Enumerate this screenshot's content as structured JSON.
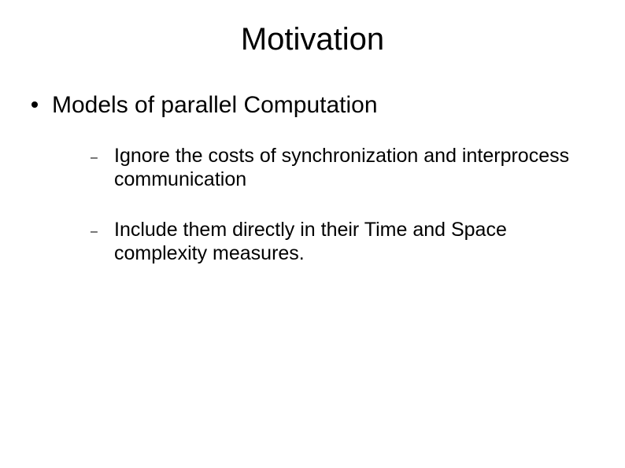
{
  "slide": {
    "title": "Motivation",
    "title_fontsize": 40,
    "title_color": "#000000",
    "background_color": "#ffffff",
    "bullets": {
      "level1": [
        {
          "text": "Models of parallel Computation",
          "marker": "disc",
          "marker_color": "#000000",
          "fontsize": 30,
          "color": "#000000",
          "children": [
            {
              "text": "Ignore the costs of synchronization and interprocess communication",
              "marker": "dash",
              "fontsize": 25,
              "color": "#000000"
            },
            {
              "text": " Include them directly in their  Time and Space complexity measures.",
              "marker": "dash",
              "fontsize": 25,
              "color": "#000000"
            }
          ]
        }
      ]
    }
  }
}
